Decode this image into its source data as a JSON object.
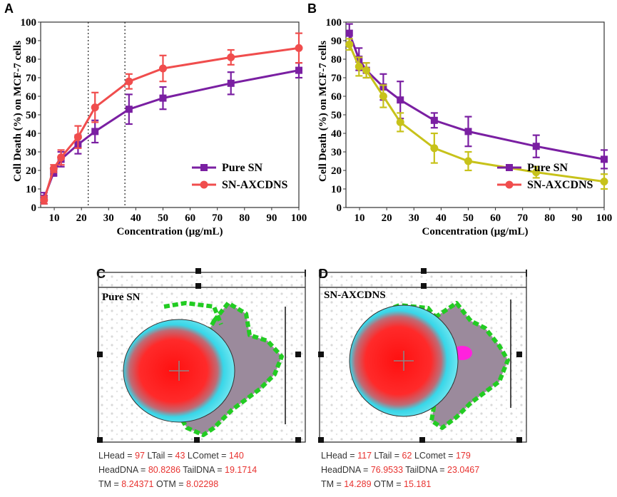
{
  "panels": {
    "A": {
      "label": "A"
    },
    "B": {
      "label": "B"
    },
    "C": {
      "label": "C",
      "title": "Pure SN"
    },
    "D": {
      "label": "D",
      "title": "SN-AXCDNS"
    }
  },
  "colors": {
    "pure": "#7a1fa2",
    "axcdns": "#f04d4d",
    "axcdns_b": "#c7c21a",
    "cyan": "#35d5e6",
    "green": "#22cc22",
    "red": "#ff1a1a"
  },
  "chart_data": [
    {
      "type": "line",
      "panel": "A",
      "xlabel": "Concentration (μg/mL)",
      "ylabel": "Cell Death (%) on MCF-7 cells",
      "xlim": [
        5,
        100
      ],
      "ylim": [
        0,
        100
      ],
      "xticks": [
        10,
        20,
        30,
        40,
        50,
        60,
        70,
        80,
        90,
        100
      ],
      "yticks": [
        0,
        10,
        20,
        30,
        40,
        50,
        60,
        70,
        80,
        90,
        100
      ],
      "vlines": [
        22.5,
        36
      ],
      "legend": {
        "position": "bottom-right"
      },
      "series": [
        {
          "name": "Pure SN",
          "marker": "square",
          "x": [
            6.25,
            9.8,
            12.5,
            18.75,
            25,
            37.5,
            50,
            75,
            100
          ],
          "y": [
            5,
            19,
            26,
            34,
            41,
            53,
            59,
            67,
            74
          ],
          "err": [
            3,
            2,
            4,
            5,
            6,
            8,
            6,
            6,
            4
          ]
        },
        {
          "name": "SN-AXCDNS",
          "marker": "circle",
          "x": [
            6.25,
            9.8,
            12.5,
            18.75,
            25,
            37.5,
            50,
            75,
            100
          ],
          "y": [
            4,
            21,
            27,
            38,
            54,
            68,
            75,
            81,
            86
          ],
          "err": [
            2,
            2,
            4,
            6,
            8,
            4,
            7,
            4,
            8
          ]
        }
      ]
    },
    {
      "type": "line",
      "panel": "B",
      "xlabel": "Concentration (μg/mL)",
      "ylabel": "Cell Death (%) on MCF-7 cells",
      "xlim": [
        5,
        100
      ],
      "ylim": [
        0,
        100
      ],
      "xticks": [
        10,
        20,
        30,
        40,
        50,
        60,
        70,
        80,
        90,
        100
      ],
      "yticks": [
        0,
        10,
        20,
        30,
        40,
        50,
        60,
        70,
        80,
        90,
        100
      ],
      "legend": {
        "position": "bottom-right"
      },
      "series": [
        {
          "name": "Pure SN",
          "marker": "square",
          "x": [
            6.25,
            9.8,
            12.5,
            18.75,
            25,
            37.5,
            50,
            75,
            100
          ],
          "y": [
            94,
            80,
            74,
            65,
            58,
            47,
            41,
            33,
            26
          ],
          "err": [
            5,
            6,
            4,
            7,
            10,
            4,
            8,
            6,
            5
          ]
        },
        {
          "name": "SN-AXCDNS",
          "marker": "circle",
          "x": [
            6.25,
            9.8,
            12.5,
            18.75,
            25,
            37.5,
            50,
            75,
            100
          ],
          "y": [
            88,
            76,
            74,
            60,
            46,
            32,
            25,
            19,
            14
          ],
          "err": [
            3,
            5,
            4,
            6,
            5,
            8,
            5,
            3,
            4
          ]
        }
      ]
    }
  ],
  "comet": {
    "C": {
      "rows": [
        [
          {
            "k": "LHead = ",
            "v": "97"
          },
          {
            "k": "LTail = ",
            "v": "43"
          },
          {
            "k": "LComet = ",
            "v": "140"
          }
        ],
        [
          {
            "k": "HeadDNA = ",
            "v": "80.8286"
          },
          {
            "k": "TailDNA = ",
            "v": "19.1714"
          }
        ],
        [
          {
            "k": "TM = ",
            "v": "8.24371"
          },
          {
            "k": "OTM = ",
            "v": "8.02298"
          }
        ]
      ]
    },
    "D": {
      "rows": [
        [
          {
            "k": "LHead = ",
            "v": "117"
          },
          {
            "k": "LTail = ",
            "v": "62"
          },
          {
            "k": "LComet = ",
            "v": "179"
          }
        ],
        [
          {
            "k": "HeadDNA = ",
            "v": "76.9533"
          },
          {
            "k": "TailDNA = ",
            "v": "23.0467"
          }
        ],
        [
          {
            "k": "TM = ",
            "v": "14.289"
          },
          {
            "k": "OTM = ",
            "v": "15.181"
          }
        ]
      ]
    }
  }
}
